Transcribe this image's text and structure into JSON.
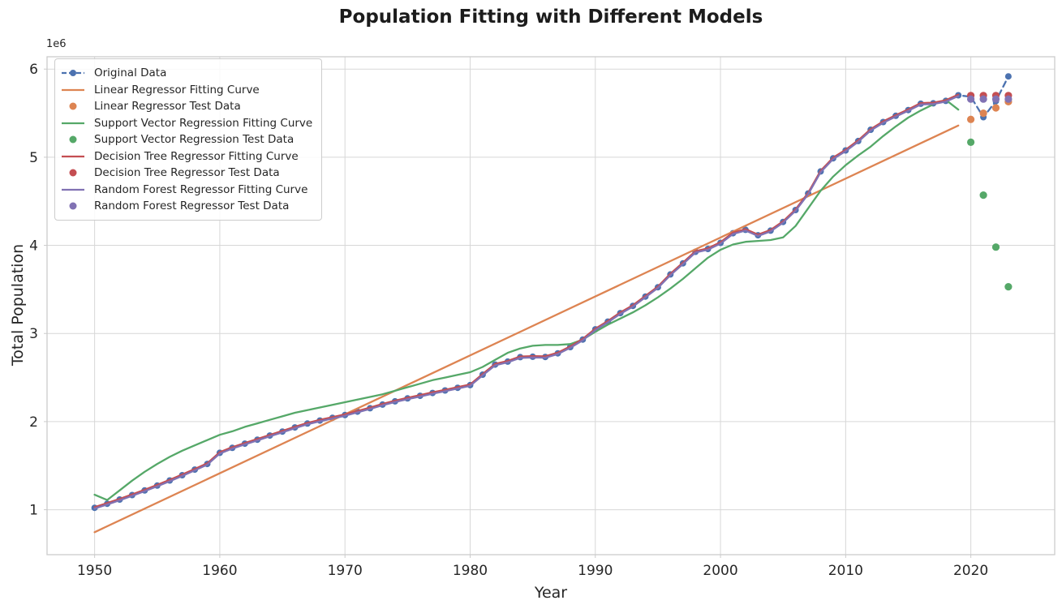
{
  "chart_data": {
    "type": "line",
    "title": "Population Fitting with Different Models",
    "xlabel": "Year",
    "ylabel": "Total Population",
    "y_offset_label": "1e6",
    "grid": true,
    "legend_position": "upper left",
    "x_ticks": [
      1950,
      1960,
      1970,
      1980,
      1990,
      2000,
      2010,
      2020
    ],
    "y_ticks": [
      1,
      2,
      3,
      4,
      5,
      6
    ],
    "x_range": [
      1946.2,
      2026.7
    ],
    "y_range": [
      0.49,
      6.14
    ],
    "colors": {
      "blue": "#4C72B0",
      "orange": "#DD8452",
      "green": "#55A868",
      "red": "#C44E52",
      "purple": "#8172B3"
    },
    "series": [
      {
        "name": "Original Data",
        "color": "blue",
        "style": "dashed",
        "markers": true,
        "x_start": 1950,
        "values": [
          1.022,
          1.068,
          1.116,
          1.166,
          1.219,
          1.274,
          1.332,
          1.392,
          1.455,
          1.52,
          1.646,
          1.702,
          1.75,
          1.795,
          1.842,
          1.887,
          1.934,
          1.978,
          2.012,
          2.043,
          2.075,
          2.113,
          2.152,
          2.193,
          2.23,
          2.263,
          2.293,
          2.325,
          2.353,
          2.384,
          2.414,
          2.533,
          2.647,
          2.681,
          2.732,
          2.736,
          2.733,
          2.775,
          2.846,
          2.931,
          3.047,
          3.135,
          3.231,
          3.313,
          3.419,
          3.525,
          3.67,
          3.796,
          3.927,
          3.959,
          4.028,
          4.138,
          4.176,
          4.115,
          4.167,
          4.266,
          4.401,
          4.589,
          4.839,
          4.988,
          5.077,
          5.184,
          5.312,
          5.399,
          5.47,
          5.535,
          5.607,
          5.612,
          5.639,
          5.703,
          5.686,
          5.454,
          5.637,
          5.917
        ]
      },
      {
        "name": "Linear Regressor Fitting Curve",
        "color": "orange",
        "style": "solid",
        "markers": false,
        "x": [
          1950,
          2019
        ],
        "values": [
          0.745,
          5.36
        ]
      },
      {
        "name": "Linear Regressor Test Data",
        "color": "orange",
        "style": "scatter",
        "x": [
          2020,
          2021,
          2022,
          2023
        ],
        "values": [
          5.43,
          5.5,
          5.56,
          5.63
        ]
      },
      {
        "name": "Support Vector Regression Fitting Curve",
        "color": "green",
        "style": "solid",
        "markers": false,
        "x_start": 1950,
        "values": [
          1.17,
          1.11,
          1.22,
          1.33,
          1.43,
          1.52,
          1.6,
          1.67,
          1.73,
          1.79,
          1.85,
          1.89,
          1.94,
          1.98,
          2.02,
          2.06,
          2.1,
          2.13,
          2.16,
          2.19,
          2.22,
          2.25,
          2.28,
          2.31,
          2.35,
          2.39,
          2.43,
          2.47,
          2.5,
          2.53,
          2.56,
          2.62,
          2.7,
          2.78,
          2.83,
          2.86,
          2.87,
          2.87,
          2.88,
          2.93,
          3.02,
          3.1,
          3.17,
          3.24,
          3.32,
          3.41,
          3.51,
          3.62,
          3.74,
          3.86,
          3.95,
          4.01,
          4.04,
          4.05,
          4.06,
          4.09,
          4.22,
          4.42,
          4.62,
          4.78,
          4.91,
          5.02,
          5.12,
          5.24,
          5.35,
          5.45,
          5.53,
          5.6,
          5.65,
          5.54
        ]
      },
      {
        "name": "Support Vector Regression Test Data",
        "color": "green",
        "style": "scatter",
        "x": [
          2020,
          2021,
          2022,
          2023
        ],
        "values": [
          5.17,
          4.57,
          3.98,
          3.53
        ]
      },
      {
        "name": "Decision Tree Regressor Fitting Curve",
        "color": "red",
        "style": "solid",
        "markers": false,
        "x_start": 1950,
        "values": [
          1.022,
          1.068,
          1.116,
          1.166,
          1.219,
          1.274,
          1.332,
          1.392,
          1.455,
          1.52,
          1.646,
          1.702,
          1.75,
          1.795,
          1.842,
          1.887,
          1.934,
          1.978,
          2.012,
          2.043,
          2.075,
          2.113,
          2.152,
          2.193,
          2.23,
          2.263,
          2.293,
          2.325,
          2.353,
          2.384,
          2.414,
          2.533,
          2.647,
          2.681,
          2.732,
          2.736,
          2.733,
          2.775,
          2.846,
          2.931,
          3.047,
          3.135,
          3.231,
          3.313,
          3.419,
          3.525,
          3.67,
          3.796,
          3.927,
          3.959,
          4.028,
          4.138,
          4.176,
          4.115,
          4.167,
          4.266,
          4.401,
          4.589,
          4.839,
          4.988,
          5.077,
          5.184,
          5.312,
          5.399,
          5.47,
          5.535,
          5.607,
          5.612,
          5.639,
          5.703
        ]
      },
      {
        "name": "Decision Tree Regressor Test Data",
        "color": "red",
        "style": "scatter",
        "x": [
          2020,
          2021,
          2022,
          2023
        ],
        "values": [
          5.7,
          5.7,
          5.7,
          5.7
        ]
      },
      {
        "name": "Random Forest Regressor Fitting Curve",
        "color": "purple",
        "style": "solid",
        "markers": false,
        "x_start": 1950,
        "values": [
          1.022,
          1.068,
          1.116,
          1.166,
          1.219,
          1.274,
          1.332,
          1.392,
          1.455,
          1.52,
          1.646,
          1.702,
          1.75,
          1.795,
          1.842,
          1.887,
          1.934,
          1.978,
          2.012,
          2.043,
          2.075,
          2.113,
          2.152,
          2.193,
          2.23,
          2.263,
          2.293,
          2.325,
          2.353,
          2.384,
          2.414,
          2.533,
          2.647,
          2.681,
          2.732,
          2.736,
          2.733,
          2.775,
          2.846,
          2.931,
          3.047,
          3.135,
          3.231,
          3.313,
          3.419,
          3.525,
          3.67,
          3.796,
          3.927,
          3.959,
          4.028,
          4.138,
          4.176,
          4.115,
          4.167,
          4.266,
          4.401,
          4.589,
          4.839,
          4.988,
          5.077,
          5.184,
          5.312,
          5.399,
          5.47,
          5.535,
          5.607,
          5.612,
          5.639,
          5.703
        ]
      },
      {
        "name": "Random Forest Regressor Test Data",
        "color": "purple",
        "style": "scatter",
        "x": [
          2020,
          2021,
          2022,
          2023
        ],
        "values": [
          5.66,
          5.66,
          5.66,
          5.66
        ]
      }
    ]
  }
}
